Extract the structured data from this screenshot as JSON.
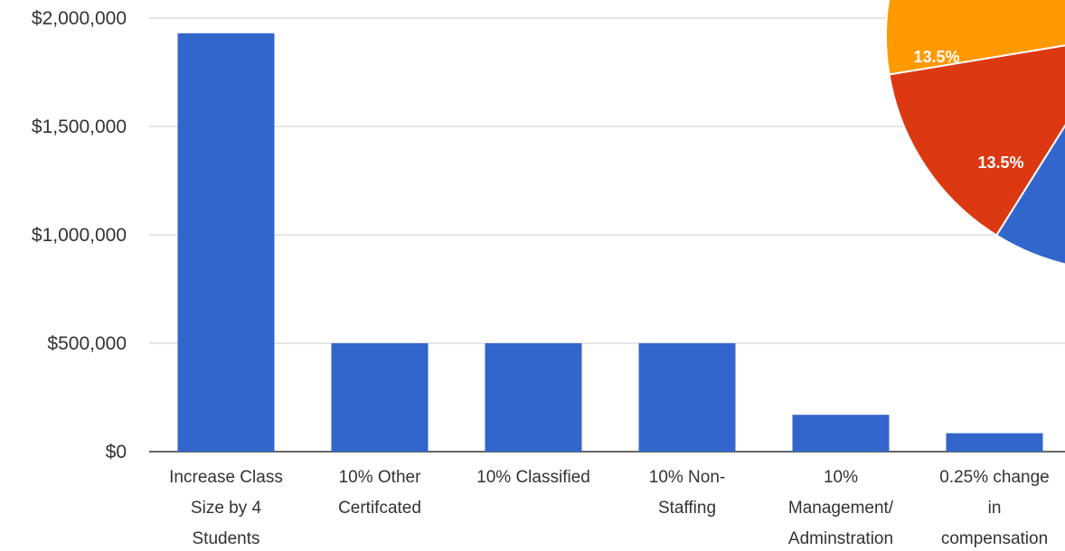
{
  "chart_data": [
    {
      "type": "bar",
      "categories": [
        [
          "Increase Class",
          "Size by 4",
          "Students"
        ],
        [
          "10% Other",
          "Certifcated"
        ],
        [
          "10% Classified"
        ],
        [
          "10% Non-",
          "Staffing"
        ],
        [
          "10%",
          "Management/",
          "Adminstration"
        ],
        [
          "0.25% change",
          "in",
          "compensation"
        ]
      ],
      "values": [
        1930000,
        500000,
        500000,
        500000,
        170000,
        85000
      ],
      "y_ticks": [
        "$0",
        "$500,000",
        "$1,000,000",
        "$1,500,000",
        "$2,000,000"
      ],
      "y_tick_values": [
        0,
        500000,
        1000000,
        1500000,
        2000000
      ],
      "ylim": [
        0,
        2000000
      ],
      "grid": true,
      "bar_color": "#3366cc",
      "title": "",
      "xlabel": "",
      "ylabel": ""
    },
    {
      "type": "pie",
      "partially_visible": true,
      "slices": [
        {
          "label": "13.5%",
          "value": 13.5,
          "color": "#ff9900"
        },
        {
          "label": "13.5%",
          "value": 13.5,
          "color": "#dc3912"
        }
      ],
      "other_visible_colors": [
        "#109618",
        "#3366cc"
      ]
    }
  ]
}
